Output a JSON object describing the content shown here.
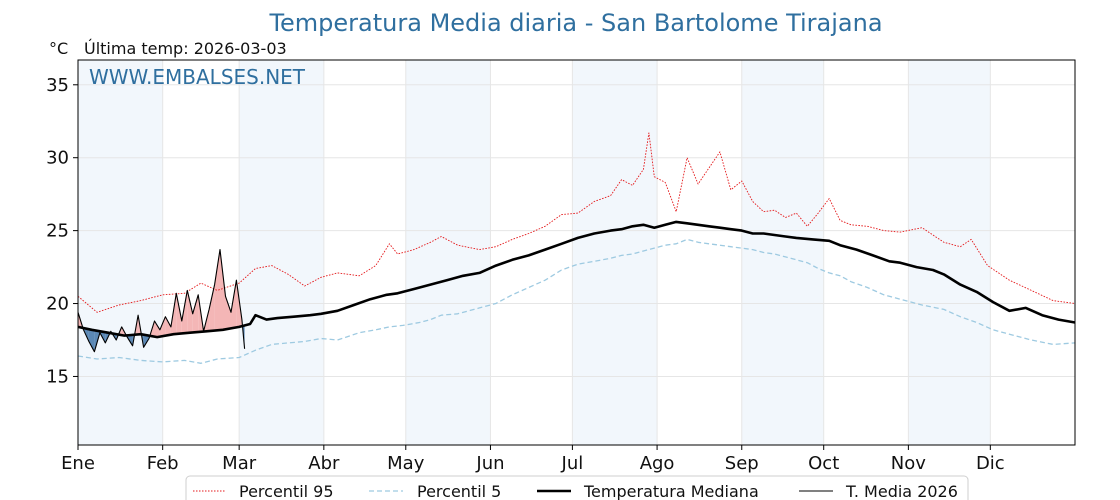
{
  "colors": {
    "p95": "#e41a1c",
    "p5": "#9ecae1",
    "median": "#000000",
    "current": "#000000",
    "above_fill": "#f4b6b6",
    "below_fill": "#5b88b5",
    "alt_band": "#f2f7fc",
    "title": "#2f6f9f",
    "watermark": "#2f6f9f"
  },
  "chart_data": {
    "type": "line",
    "title": "Temperatura Media diaria - San Bartolome Tirajana",
    "ylabel": "°C",
    "last_update_text": "Última temp: 2026-03-03",
    "watermark": "WWW.EMBALSES.NET",
    "ylim": [
      10.3,
      36.7
    ],
    "yticks": [
      15,
      20,
      25,
      30,
      35
    ],
    "xlim": [
      1,
      366
    ],
    "month_labels": [
      "Ene",
      "Feb",
      "Mar",
      "Abr",
      "May",
      "Jun",
      "Jul",
      "Ago",
      "Sep",
      "Oct",
      "Nov",
      "Dic"
    ],
    "month_start_days": [
      1,
      32,
      60,
      91,
      121,
      152,
      182,
      213,
      244,
      274,
      305,
      335
    ],
    "grid": true,
    "legend_position": "bottom",
    "series": [
      {
        "name": "Percentil 95",
        "style": "dotted-thin",
        "x": [
          1,
          8,
          16,
          24,
          32,
          40,
          46,
          52,
          60,
          66,
          72,
          78,
          84,
          90,
          96,
          104,
          110,
          115,
          118,
          124,
          130,
          134,
          140,
          148,
          154,
          160,
          166,
          172,
          178,
          184,
          190,
          196,
          200,
          204,
          208,
          210,
          212,
          216,
          220,
          224,
          228,
          232,
          236,
          240,
          244,
          248,
          252,
          256,
          260,
          264,
          268,
          272,
          276,
          280,
          284,
          290,
          296,
          302,
          310,
          318,
          324,
          328,
          334,
          342,
          350,
          358,
          366
        ],
        "y": [
          20.5,
          19.4,
          19.9,
          20.2,
          20.6,
          20.7,
          21.4,
          20.9,
          21.4,
          22.4,
          22.6,
          22.0,
          21.2,
          21.8,
          22.1,
          21.9,
          22.6,
          24.1,
          23.4,
          23.7,
          24.2,
          24.6,
          24.0,
          23.7,
          23.9,
          24.4,
          24.8,
          25.3,
          26.1,
          26.2,
          27.0,
          27.4,
          28.5,
          28.1,
          29.2,
          31.7,
          28.7,
          28.3,
          26.3,
          30.0,
          28.2,
          29.3,
          30.4,
          27.8,
          28.4,
          27.0,
          26.3,
          26.4,
          25.9,
          26.2,
          25.3,
          26.2,
          27.2,
          25.7,
          25.4,
          25.3,
          25.0,
          24.9,
          25.2,
          24.2,
          23.9,
          24.4,
          22.6,
          21.6,
          20.9,
          20.2,
          20.0
        ]
      },
      {
        "name": "Percentil 5",
        "style": "dashed",
        "x": [
          1,
          8,
          16,
          24,
          32,
          40,
          46,
          52,
          60,
          66,
          72,
          78,
          84,
          90,
          96,
          104,
          110,
          115,
          120,
          126,
          130,
          134,
          140,
          148,
          154,
          160,
          166,
          172,
          178,
          184,
          190,
          196,
          200,
          204,
          208,
          212,
          216,
          220,
          224,
          228,
          232,
          236,
          240,
          244,
          248,
          252,
          256,
          260,
          264,
          268,
          272,
          276,
          280,
          284,
          290,
          296,
          302,
          310,
          318,
          324,
          330,
          336,
          342,
          350,
          358,
          366
        ],
        "y": [
          16.4,
          16.2,
          16.3,
          16.1,
          16.0,
          16.1,
          15.9,
          16.2,
          16.3,
          16.8,
          17.2,
          17.3,
          17.4,
          17.6,
          17.5,
          18.0,
          18.2,
          18.4,
          18.5,
          18.7,
          18.9,
          19.2,
          19.3,
          19.7,
          20.0,
          20.6,
          21.1,
          21.6,
          22.3,
          22.7,
          22.9,
          23.1,
          23.3,
          23.4,
          23.6,
          23.8,
          24.0,
          24.1,
          24.4,
          24.2,
          24.1,
          24.0,
          23.9,
          23.8,
          23.7,
          23.5,
          23.4,
          23.2,
          23.0,
          22.8,
          22.4,
          22.1,
          21.9,
          21.5,
          21.1,
          20.6,
          20.3,
          19.9,
          19.6,
          19.1,
          18.7,
          18.2,
          17.9,
          17.5,
          17.2,
          17.3
        ]
      },
      {
        "name": "Temperatura Mediana",
        "style": "solid-thick",
        "x": [
          1,
          6,
          12,
          18,
          24,
          30,
          36,
          42,
          48,
          54,
          60,
          64,
          66,
          70,
          74,
          80,
          86,
          90,
          96,
          102,
          108,
          114,
          118,
          124,
          130,
          136,
          142,
          148,
          154,
          160,
          166,
          172,
          178,
          184,
          190,
          196,
          200,
          204,
          208,
          212,
          216,
          220,
          224,
          228,
          232,
          236,
          240,
          244,
          248,
          252,
          256,
          260,
          264,
          270,
          276,
          280,
          286,
          292,
          298,
          302,
          308,
          314,
          318,
          324,
          330,
          336,
          342,
          348,
          354,
          360,
          366
        ],
        "y": [
          18.4,
          18.2,
          18.0,
          17.8,
          17.9,
          17.7,
          17.9,
          18.0,
          18.1,
          18.2,
          18.4,
          18.6,
          19.2,
          18.9,
          19.0,
          19.1,
          19.2,
          19.3,
          19.5,
          19.9,
          20.3,
          20.6,
          20.7,
          21.0,
          21.3,
          21.6,
          21.9,
          22.1,
          22.6,
          23.0,
          23.3,
          23.7,
          24.1,
          24.5,
          24.8,
          25.0,
          25.1,
          25.3,
          25.4,
          25.2,
          25.4,
          25.6,
          25.5,
          25.4,
          25.3,
          25.2,
          25.1,
          25.0,
          24.8,
          24.8,
          24.7,
          24.6,
          24.5,
          24.4,
          24.3,
          24.0,
          23.7,
          23.3,
          22.9,
          22.8,
          22.5,
          22.3,
          22.0,
          21.3,
          20.8,
          20.1,
          19.5,
          19.7,
          19.2,
          18.9,
          18.7
        ]
      },
      {
        "name": "T. Media 2026",
        "style": "solid-thin",
        "x": [
          1,
          3,
          5,
          7,
          9,
          11,
          13,
          15,
          17,
          19,
          21,
          23,
          25,
          27,
          29,
          31,
          33,
          35,
          37,
          39,
          41,
          43,
          45,
          47,
          49,
          51,
          53,
          55,
          57,
          59,
          61,
          62
        ],
        "y": [
          19.4,
          18.2,
          17.4,
          16.7,
          18.0,
          17.3,
          18.1,
          17.5,
          18.4,
          17.7,
          17.1,
          19.2,
          17.0,
          17.6,
          18.8,
          18.2,
          19.1,
          18.4,
          20.7,
          18.8,
          20.9,
          19.3,
          20.6,
          18.1,
          19.6,
          21.3,
          23.7,
          20.5,
          19.4,
          21.6,
          18.9,
          16.9
        ]
      }
    ]
  }
}
